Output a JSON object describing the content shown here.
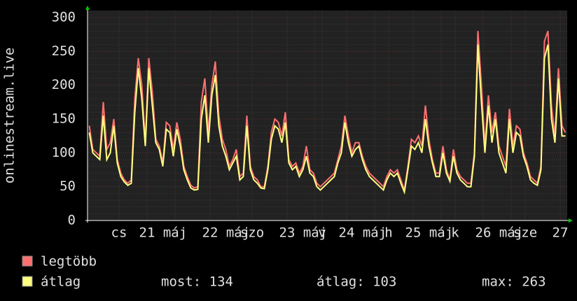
{
  "chart_data": {
    "type": "line",
    "ylabel": "onlinestream.live",
    "ylim": [
      0,
      300
    ],
    "yticks": [
      0,
      50,
      100,
      150,
      200,
      250,
      300
    ],
    "xlim": [
      0,
      137
    ],
    "xticks": [
      {
        "value": 9,
        "label": "cs"
      },
      {
        "value": 17,
        "label": "21"
      },
      {
        "value": 25,
        "label": "máj"
      },
      {
        "value": 35,
        "label": "22"
      },
      {
        "value": 43,
        "label": "máj"
      },
      {
        "value": 47,
        "label": "szo"
      },
      {
        "value": 57,
        "label": "23"
      },
      {
        "value": 65,
        "label": "máj"
      },
      {
        "value": 67,
        "label": "v"
      },
      {
        "value": 74,
        "label": "24"
      },
      {
        "value": 82,
        "label": "máj"
      },
      {
        "value": 86,
        "label": "h"
      },
      {
        "value": 93,
        "label": "25"
      },
      {
        "value": 101,
        "label": "máj"
      },
      {
        "value": 105,
        "label": "k"
      },
      {
        "value": 113,
        "label": "26"
      },
      {
        "value": 121,
        "label": "máj"
      },
      {
        "value": 125,
        "label": "sze"
      },
      {
        "value": 135,
        "label": "27"
      }
    ],
    "grid": true,
    "series": [
      {
        "name": "legtöbb",
        "color": "#ff7070",
        "values": [
          140,
          105,
          100,
          95,
          175,
          105,
          115,
          150,
          90,
          70,
          60,
          55,
          60,
          180,
          240,
          200,
          115,
          240,
          190,
          120,
          110,
          85,
          145,
          140,
          105,
          145,
          120,
          80,
          65,
          52,
          48,
          50,
          175,
          210,
          130,
          200,
          235,
          155,
          120,
          105,
          80,
          90,
          105,
          65,
          70,
          155,
          80,
          65,
          60,
          50,
          50,
          80,
          130,
          150,
          145,
          125,
          160,
          90,
          80,
          85,
          70,
          80,
          110,
          75,
          70,
          55,
          50,
          55,
          60,
          65,
          70,
          90,
          110,
          155,
          125,
          100,
          115,
          115,
          95,
          80,
          70,
          65,
          60,
          55,
          50,
          65,
          75,
          70,
          75,
          60,
          45,
          80,
          120,
          115,
          125,
          110,
          170,
          120,
          90,
          70,
          70,
          110,
          75,
          60,
          105,
          75,
          65,
          60,
          55,
          55,
          100,
          280,
          200,
          110,
          185,
          130,
          160,
          110,
          95,
          80,
          165,
          110,
          140,
          135,
          100,
          85,
          65,
          60,
          55,
          80,
          265,
          280,
          170,
          125,
          225,
          140,
          130
        ]
      },
      {
        "name": "átlag",
        "color": "#ffff80",
        "values": [
          130,
          100,
          95,
          90,
          155,
          90,
          100,
          140,
          85,
          65,
          57,
          52,
          55,
          160,
          225,
          180,
          110,
          225,
          170,
          115,
          105,
          80,
          135,
          130,
          95,
          135,
          110,
          75,
          60,
          48,
          45,
          46,
          150,
          185,
          115,
          185,
          215,
          140,
          110,
          95,
          75,
          85,
          95,
          60,
          65,
          140,
          75,
          60,
          55,
          48,
          47,
          75,
          120,
          140,
          135,
          115,
          145,
          85,
          75,
          80,
          65,
          75,
          95,
          70,
          65,
          50,
          45,
          50,
          55,
          60,
          65,
          85,
          100,
          145,
          115,
          95,
          105,
          110,
          90,
          75,
          65,
          60,
          55,
          50,
          45,
          60,
          70,
          65,
          70,
          55,
          42,
          75,
          110,
          105,
          115,
          100,
          150,
          110,
          85,
          65,
          65,
          100,
          70,
          58,
          95,
          70,
          60,
          55,
          50,
          50,
          95,
          260,
          175,
          100,
          170,
          115,
          150,
          100,
          85,
          70,
          150,
          100,
          130,
          125,
          95,
          80,
          60,
          55,
          52,
          75,
          240,
          260,
          150,
          115,
          210,
          125,
          125
        ]
      }
    ],
    "stats": [
      "most: 134",
      "átlag: 103",
      "max: 263"
    ]
  }
}
